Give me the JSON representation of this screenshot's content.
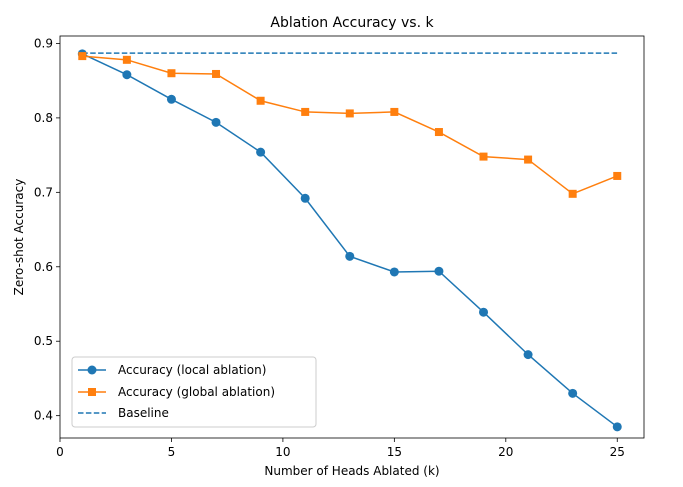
{
  "chart_data": {
    "type": "line",
    "title": "Ablation Accuracy vs. k",
    "xlabel": "Number of Heads Ablated (k)",
    "ylabel": "Zero-shot Accuracy",
    "xlim": [
      0,
      26.2
    ],
    "ylim": [
      0.37,
      0.91
    ],
    "x_ticks": [
      0,
      5,
      10,
      15,
      20,
      25
    ],
    "y_ticks": [
      0.4,
      0.5,
      0.6,
      0.7,
      0.8,
      0.9
    ],
    "x_tick_labels": [
      "0",
      "5",
      "10",
      "15",
      "20",
      "25"
    ],
    "y_tick_labels": [
      "0.4",
      "0.5",
      "0.6",
      "0.7",
      "0.8",
      "0.9"
    ],
    "x": [
      1,
      3,
      5,
      7,
      9,
      11,
      13,
      15,
      17,
      19,
      21,
      23,
      25
    ],
    "series": [
      {
        "name": "Accuracy (local ablation)",
        "color": "#1f77b4",
        "marker": "circle",
        "values": [
          0.886,
          0.858,
          0.825,
          0.794,
          0.754,
          0.692,
          0.614,
          0.593,
          0.594,
          0.539,
          0.482,
          0.43,
          0.385
        ]
      },
      {
        "name": "Accuracy (global ablation)",
        "color": "#ff7f0e",
        "marker": "square",
        "values": [
          0.883,
          0.878,
          0.86,
          0.859,
          0.823,
          0.808,
          0.806,
          0.808,
          0.781,
          0.748,
          0.744,
          0.698,
          0.722
        ]
      }
    ],
    "baseline": {
      "name": "Baseline",
      "color": "#1f77b4",
      "style": "dashed",
      "value": 0.887,
      "x_range": [
        1,
        25
      ]
    },
    "legend": {
      "placement": "lower-left",
      "entries": [
        "Accuracy (local ablation)",
        "Accuracy (global ablation)",
        "Baseline"
      ]
    },
    "grid": false
  }
}
